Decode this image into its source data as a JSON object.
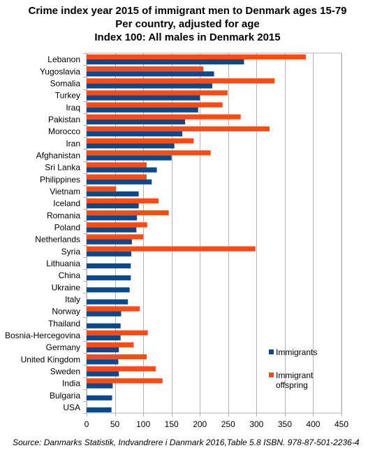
{
  "title_lines": [
    "Crime index year 2015 of immigrant men to Denmark ages 15-79",
    "Per country, adjusted for age",
    "Index 100: All males in Denmark 2015"
  ],
  "source": "Source: Danmarks Statistik, Indvandrere i Danmark 2016,Table 5.8 ISBN. 978-87-501-2236-4",
  "chart_data": {
    "type": "bar",
    "orientation": "horizontal",
    "categories": [
      "Lebanon",
      "Yugoslavia",
      "Somalia",
      "Turkey",
      "Iraq",
      "Pakistan",
      "Morocco",
      "Iran",
      "Afghanistan",
      "Sri Lanka",
      "Philippines",
      "Vietnam",
      "Iceland",
      "Romania",
      "Poland",
      "Netherlands",
      "Syria",
      "Lithuania",
      "China",
      "Ukraine",
      "Italy",
      "Norway",
      "Thailand",
      "Bosnia-Hercegovina",
      "Germany",
      "United Kingdom",
      "Sweden",
      "India",
      "Bulgaria",
      "USA"
    ],
    "series": [
      {
        "name": "Immigrants",
        "color": "#0a4a8c",
        "values": [
          278,
          225,
          222,
          200,
          197,
          174,
          169,
          155,
          150,
          124,
          115,
          92,
          92,
          89,
          88,
          80,
          79,
          78,
          78,
          76,
          73,
          61,
          60,
          60,
          57,
          56,
          57,
          46,
          45,
          44
        ]
      },
      {
        "name": "Immigrant offspring",
        "color": "#ff4b12",
        "values": [
          387,
          206,
          332,
          249,
          240,
          272,
          323,
          189,
          219,
          106,
          106,
          52,
          127,
          145,
          107,
          100,
          298,
          null,
          null,
          null,
          null,
          94,
          null,
          108,
          83,
          106,
          122,
          134,
          null,
          null
        ]
      }
    ],
    "legend": [
      "Immigrants",
      "Immigrant offspring"
    ],
    "legend_position": "right-bottom",
    "xlim": [
      0,
      450
    ],
    "xticks": [
      "0",
      "50",
      "100",
      "150",
      "200",
      "250",
      "300",
      "350",
      "400",
      "450"
    ],
    "grid": true
  }
}
